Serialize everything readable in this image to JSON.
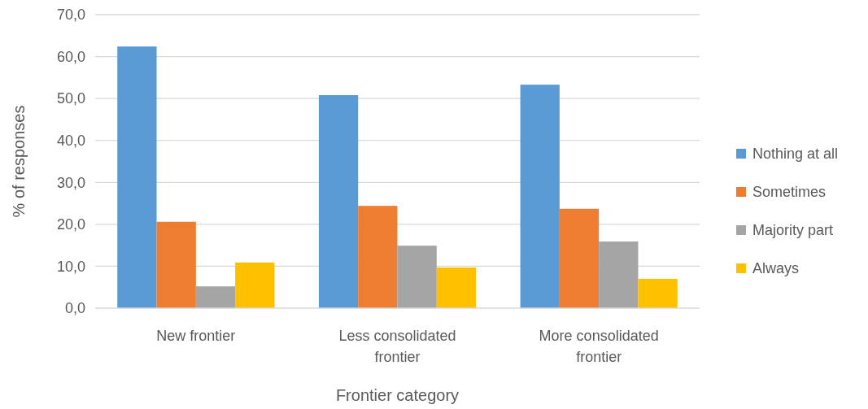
{
  "chart_data": {
    "type": "bar",
    "xlabel": "Frontier category",
    "ylabel": "% of responses",
    "categories": [
      "New frontier",
      "Less consolidated frontier",
      "More consolidated frontier"
    ],
    "series": [
      {
        "name": "Nothing at all",
        "color": "#5b9bd5",
        "values": [
          62.4,
          50.8,
          53.3
        ]
      },
      {
        "name": "Sometimes",
        "color": "#ed7d31",
        "values": [
          20.6,
          24.4,
          23.7
        ]
      },
      {
        "name": "Majority part",
        "color": "#a5a5a5",
        "values": [
          5.2,
          14.9,
          15.9
        ]
      },
      {
        "name": "Always",
        "color": "#ffc000",
        "values": [
          10.9,
          9.7,
          7.0
        ]
      }
    ],
    "ylim": [
      0,
      70
    ],
    "yticks": [
      {
        "value": 0,
        "label": "0,0"
      },
      {
        "value": 10,
        "label": "10,0"
      },
      {
        "value": 20,
        "label": "20,0"
      },
      {
        "value": 30,
        "label": "30,0"
      },
      {
        "value": 40,
        "label": "40,0"
      },
      {
        "value": 50,
        "label": "50,0"
      },
      {
        "value": 60,
        "label": "60,0"
      },
      {
        "value": 70,
        "label": "70,0"
      }
    ],
    "grid": "y",
    "legend": "right"
  }
}
